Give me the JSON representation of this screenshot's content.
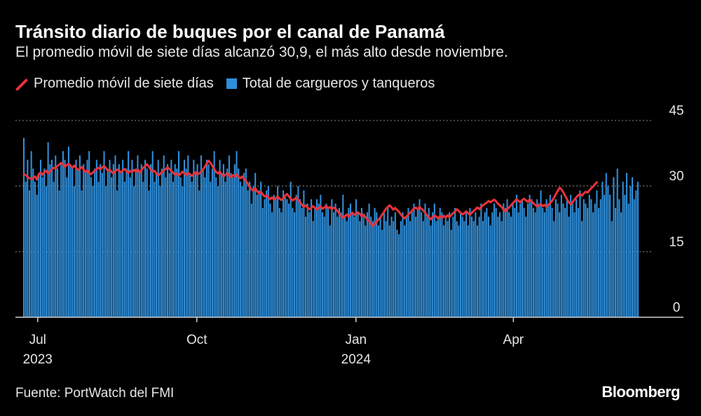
{
  "header": {
    "title": "Tránsito diario de buques por el canal de Panamá",
    "subtitle": "El promedio móvil de siete días alcanzó 30,9, el más alto desde noviembre."
  },
  "legend": {
    "line_label": "Promedio móvil de siete días",
    "bar_label": "Total de cargueros y tanqueros"
  },
  "footer": {
    "source": "Fuente: PortWatch del FMI",
    "brand": "Bloomberg"
  },
  "colors": {
    "background": "#000000",
    "bar": "#2f8fdb",
    "line": "#e8323b",
    "grid": "#8a8a8a",
    "axis": "#cfcfcf",
    "text": "#e6e6e6"
  },
  "chart_data": {
    "type": "bar",
    "x_start": "2023-06-23",
    "x_end": "2024-06-12",
    "ylim": [
      0,
      45
    ],
    "yticks": [
      0,
      15,
      30,
      45
    ],
    "grid": "horizontal dotted",
    "legend_position": "top-left",
    "x_tick_labels": [
      {
        "date": "2023-07-01",
        "label": "Jul",
        "sublabel": "2023"
      },
      {
        "date": "2023-10-01",
        "label": "Oct",
        "sublabel": ""
      },
      {
        "date": "2024-01-01",
        "label": "Jan",
        "sublabel": "2024"
      },
      {
        "date": "2024-04-01",
        "label": "Apr",
        "sublabel": ""
      }
    ],
    "series": [
      {
        "name": "Total de cargueros y tanqueros",
        "kind": "bar",
        "values": [
          41,
          31,
          36,
          29,
          38,
          34,
          31,
          28,
          33,
          36,
          32,
          34,
          30,
          40,
          35,
          36,
          31,
          37,
          34,
          29,
          35,
          38,
          36,
          32,
          39,
          35,
          34,
          30,
          36,
          34,
          37,
          29,
          35,
          33,
          36,
          38,
          32,
          30,
          34,
          36,
          31,
          35,
          33,
          38,
          30,
          34,
          36,
          32,
          35,
          37,
          29,
          35,
          33,
          36,
          31,
          34,
          38,
          32,
          36,
          30,
          34,
          37,
          33,
          35,
          31,
          36,
          34,
          29,
          35,
          38,
          31,
          33,
          36,
          30,
          34,
          37,
          32,
          35,
          33,
          36,
          31,
          35,
          34,
          38,
          32,
          30,
          36,
          34,
          37,
          33,
          31,
          36,
          33,
          35,
          29,
          37,
          34,
          32,
          36,
          35,
          31,
          34,
          38,
          32,
          30,
          36,
          33,
          35,
          31,
          34,
          37,
          33,
          32,
          35,
          38,
          34,
          31,
          30,
          33,
          34,
          29,
          31,
          26,
          30,
          33,
          28,
          29,
          31,
          25,
          27,
          29,
          30,
          26,
          24,
          28,
          27,
          30,
          25,
          24,
          29,
          28,
          27,
          26,
          31,
          25,
          24,
          28,
          30,
          27,
          25,
          29,
          23,
          26,
          24,
          27,
          22,
          25,
          27,
          26,
          28,
          24,
          23,
          26,
          25,
          21,
          27,
          24,
          26,
          23,
          25,
          24,
          28,
          23,
          22,
          25,
          26,
          24,
          23,
          27,
          24,
          22,
          25,
          23,
          21,
          24,
          26,
          23,
          22,
          25,
          24,
          21,
          23,
          20,
          24,
          22,
          25,
          21,
          23,
          22,
          24,
          20,
          19,
          22,
          24,
          21,
          23,
          25,
          22,
          24,
          26,
          23,
          25,
          27,
          24,
          22,
          26,
          23,
          25,
          21,
          24,
          26,
          22,
          23,
          25,
          24,
          21,
          23,
          22,
          24,
          20,
          23,
          25,
          22,
          21,
          24,
          23,
          22,
          24,
          21,
          25,
          23,
          22,
          24,
          21,
          23,
          26,
          22,
          24,
          25,
          23,
          21,
          24,
          26,
          25,
          23,
          24,
          22,
          26,
          25,
          27,
          24,
          23,
          26,
          25,
          28,
          24,
          26,
          27,
          25,
          23,
          26,
          28,
          27,
          25,
          24,
          27,
          26,
          29,
          25,
          24,
          27,
          26,
          28,
          25,
          22,
          27,
          26,
          24,
          28,
          26,
          25,
          27,
          23,
          28,
          26,
          24,
          27,
          25,
          29,
          22,
          27,
          26,
          25,
          28,
          27,
          24,
          26,
          29,
          25,
          27,
          31,
          28,
          33,
          30,
          28,
          22,
          32,
          25,
          34,
          27,
          24,
          31,
          28,
          33,
          26,
          30,
          32,
          27,
          29,
          31
        ]
      },
      {
        "name": "Promedio móvil de siete días",
        "kind": "line",
        "values": [
          32.8,
          32.5,
          32.1,
          31.8,
          31.6,
          31.9,
          32.2,
          31.5,
          32.7,
          33.1,
          32.6,
          33.2,
          33.5,
          32.9,
          33.3,
          33.8,
          34.2,
          34.0,
          34.6,
          34.9,
          35.3,
          35.0,
          34.4,
          34.8,
          35.1,
          34.6,
          34.2,
          34.7,
          34.1,
          33.7,
          33.9,
          34.4,
          33.8,
          33.2,
          33.6,
          33.0,
          32.7,
          33.1,
          33.5,
          33.9,
          34.2,
          33.8,
          34.3,
          34.6,
          34.1,
          33.5,
          33.8,
          33.2,
          32.9,
          33.4,
          33.8,
          33.5,
          33.1,
          33.6,
          33.9,
          33.4,
          33.0,
          33.5,
          33.2,
          33.7,
          33.3,
          33.8,
          33.1,
          33.6,
          34.2,
          34.6,
          35.0,
          34.4,
          33.8,
          33.3,
          33.5,
          32.9,
          32.4,
          32.8,
          33.2,
          33.6,
          33.9,
          34.3,
          33.9,
          33.5,
          33.0,
          32.6,
          32.9,
          32.4,
          32.8,
          33.3,
          32.9,
          32.5,
          33.0,
          32.7,
          32.3,
          32.8,
          33.2,
          32.6,
          32.9,
          33.3,
          33.8,
          34.4,
          35.2,
          35.8,
          35.3,
          34.6,
          33.9,
          33.2,
          32.9,
          33.3,
          32.7,
          32.2,
          32.6,
          33.0,
          32.4,
          32.0,
          32.5,
          32.2,
          32.7,
          32.1,
          31.8,
          32.2,
          31.6,
          31.2,
          30.5,
          29.8,
          29.2,
          28.9,
          29.5,
          28.8,
          28.3,
          28.7,
          28.1,
          27.6,
          27.9,
          27.4,
          27.0,
          27.4,
          26.9,
          27.3,
          27.6,
          27.1,
          26.8,
          27.2,
          27.8,
          28.2,
          27.6,
          27.1,
          26.7,
          27.0,
          27.4,
          26.8,
          26.3,
          25.7,
          25.2,
          25.6,
          25.1,
          24.7,
          25.0,
          25.4,
          25.0,
          24.6,
          25.0,
          25.3,
          24.8,
          25.1,
          25.5,
          24.9,
          25.2,
          24.7,
          25.1,
          24.8,
          24.3,
          23.7,
          23.2,
          22.7,
          23.1,
          23.5,
          23.0,
          23.5,
          23.9,
          23.4,
          23.7,
          24.0,
          23.6,
          23.1,
          23.5,
          22.9,
          22.4,
          22.0,
          21.4,
          20.9,
          21.3,
          21.8,
          22.4,
          22.8,
          23.5,
          24.1,
          24.8,
          25.2,
          25.6,
          25.1,
          24.6,
          25.0,
          24.5,
          24.1,
          23.5,
          23.0,
          22.6,
          23.0,
          23.5,
          23.9,
          24.4,
          24.8,
          25.1,
          24.7,
          25.2,
          24.8,
          24.4,
          23.9,
          23.3,
          22.8,
          22.4,
          22.9,
          23.3,
          23.0,
          22.6,
          23.1,
          22.7,
          23.2,
          22.8,
          23.3,
          22.9,
          23.4,
          23.8,
          24.2,
          24.7,
          24.3,
          23.9,
          23.5,
          23.8,
          24.2,
          23.8,
          23.4,
          23.9,
          24.3,
          24.7,
          25.1,
          24.7,
          25.2,
          25.6,
          25.9,
          26.2,
          26.6,
          26.3,
          26.6,
          26.9,
          26.5,
          26.0,
          25.6,
          25.2,
          24.6,
          24.2,
          24.7,
          25.1,
          25.6,
          26.1,
          26.5,
          27.0,
          26.6,
          26.3,
          26.8,
          27.1,
          26.7,
          26.4,
          26.9,
          26.5,
          26.1,
          25.7,
          25.3,
          25.6,
          25.9,
          25.4,
          25.7,
          25.3,
          25.7,
          26.1,
          26.6,
          27.3,
          28.1,
          28.9,
          29.6,
          29.3,
          28.6,
          27.8,
          27.0,
          26.3,
          25.8,
          26.3,
          26.9,
          27.4,
          27.9,
          28.2,
          27.8,
          28.3,
          28.7,
          28.5,
          29.0,
          29.5,
          29.9,
          30.4,
          30.9
        ]
      }
    ]
  }
}
